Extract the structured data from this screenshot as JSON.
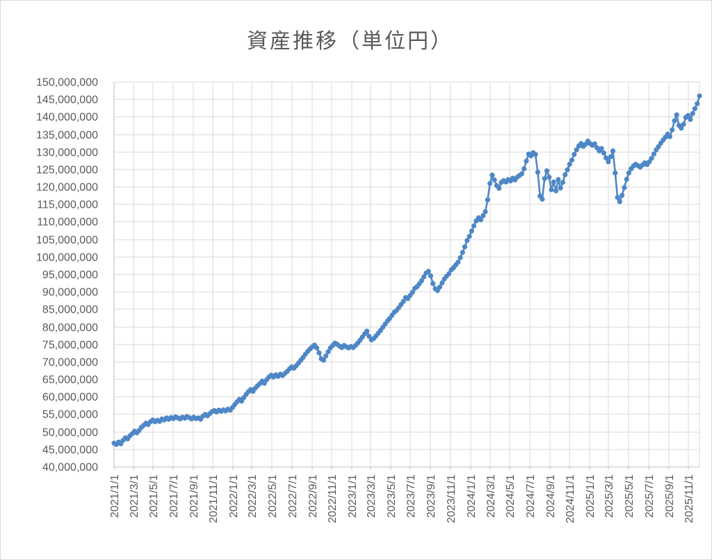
{
  "chart": {
    "title": "資産推移（単位円）",
    "background": "#ffffff",
    "border_color": "#d9d9d9",
    "title_color": "#595959",
    "label_color": "#595959",
    "gridline_color": "#d9d9d9",
    "axis_color": "#bfbfbf"
  },
  "chart_data": {
    "type": "line",
    "title": "資産推移（単位円）",
    "ylabel": "",
    "xlabel": "",
    "unit": "JPY",
    "grid": true,
    "legend": "none",
    "marker": "circle",
    "line_color": "#4e87c6",
    "ylim": [
      40000000,
      150000000
    ],
    "y_tick_step": 5000000,
    "x_start_date": "2021/1/1",
    "x_interval_days": 7,
    "x_tick_labels": [
      "2021/1/1",
      "2021/3/1",
      "2021/5/1",
      "2021/7/1",
      "2021/9/1",
      "2021/11/1",
      "2022/1/1",
      "2022/3/1",
      "2022/5/1",
      "2022/7/1",
      "2022/9/1",
      "2022/11/1",
      "2023/1/1",
      "2023/3/1",
      "2023/5/1",
      "2023/7/1",
      "2023/9/1",
      "2023/11/1",
      "2024/1/1",
      "2024/3/1",
      "2024/5/1",
      "2024/7/1",
      "2024/9/1",
      "2024/11/1",
      "2025/1/1",
      "2025/3/1",
      "2025/5/1",
      "2025/7/1",
      "2025/9/1",
      "2025/11/1"
    ],
    "value_unit": "millions of JPY",
    "values_unit_multiplier": 1000000,
    "values": [
      46.8,
      46.4,
      47.1,
      46.6,
      47.6,
      48.3,
      48.0,
      48.9,
      49.5,
      50.2,
      49.7,
      50.4,
      51.3,
      51.9,
      52.5,
      52.1,
      52.9,
      53.4,
      52.9,
      53.3,
      53.0,
      53.7,
      53.4,
      54.0,
      53.6,
      54.1,
      53.8,
      54.3,
      54.0,
      53.7,
      54.2,
      53.9,
      54.4,
      54.1,
      53.7,
      54.2,
      53.8,
      54.0,
      53.6,
      54.5,
      55.0,
      54.6,
      55.2,
      55.8,
      56.1,
      55.7,
      56.2,
      55.9,
      56.3,
      56.0,
      56.5,
      56.2,
      57.0,
      57.8,
      58.6,
      59.3,
      58.8,
      59.8,
      60.7,
      61.5,
      62.1,
      61.6,
      62.5,
      63.2,
      63.8,
      64.5,
      63.9,
      64.9,
      65.7,
      66.2,
      65.7,
      66.3,
      65.9,
      66.5,
      66.1,
      66.7,
      67.3,
      68.0,
      68.6,
      68.2,
      68.9,
      69.7,
      70.5,
      71.3,
      72.2,
      73.0,
      73.7,
      74.3,
      74.8,
      74.0,
      72.6,
      70.9,
      70.5,
      71.7,
      72.9,
      74.0,
      74.7,
      75.4,
      75.0,
      74.5,
      74.1,
      74.7,
      74.3,
      74.0,
      74.4,
      74.1,
      74.7,
      75.4,
      76.2,
      77.1,
      78.0,
      78.8,
      77.3,
      76.3,
      76.7,
      77.4,
      78.2,
      79.0,
      79.9,
      80.8,
      81.7,
      82.4,
      83.3,
      84.2,
      84.7,
      85.5,
      86.4,
      87.3,
      88.4,
      88.1,
      89.0,
      89.9,
      91.0,
      91.5,
      92.3,
      93.2,
      94.3,
      95.4,
      95.9,
      94.6,
      92.4,
      90.9,
      90.4,
      91.4,
      92.6,
      93.7,
      94.5,
      95.2,
      96.3,
      96.9,
      97.7,
      98.5,
      99.8,
      101.3,
      102.9,
      104.7,
      105.9,
      107.4,
      108.9,
      110.3,
      111.2,
      110.6,
      111.8,
      112.9,
      116.3,
      121.0,
      123.4,
      122.0,
      120.4,
      119.6,
      121.3,
      121.8,
      121.4,
      122.1,
      121.7,
      122.5,
      122.0,
      122.8,
      123.3,
      123.8,
      125.2,
      127.4,
      129.4,
      128.9,
      129.8,
      129.3,
      124.2,
      117.4,
      116.5,
      122.4,
      124.6,
      122.8,
      119.2,
      121.4,
      118.9,
      122.1,
      119.7,
      121.3,
      123.5,
      124.9,
      126.5,
      127.7,
      129.3,
      130.6,
      131.7,
      132.4,
      131.6,
      132.2,
      133.1,
      132.4,
      131.9,
      132.3,
      131.2,
      130.3,
      131.0,
      129.7,
      128.3,
      127.2,
      128.6,
      130.3,
      124.0,
      117.0,
      115.8,
      117.6,
      119.8,
      122.2,
      124.0,
      125.2,
      126.0,
      126.5,
      126.1,
      125.7,
      126.3,
      126.9,
      126.4,
      127.2,
      128.2,
      129.4,
      130.6,
      131.5,
      132.5,
      133.4,
      134.2,
      135.1,
      134.4,
      136.3,
      138.9,
      140.6,
      137.6,
      136.8,
      137.9,
      139.9,
      140.4,
      139.3,
      141.0,
      142.4,
      143.8,
      146.0
    ]
  }
}
